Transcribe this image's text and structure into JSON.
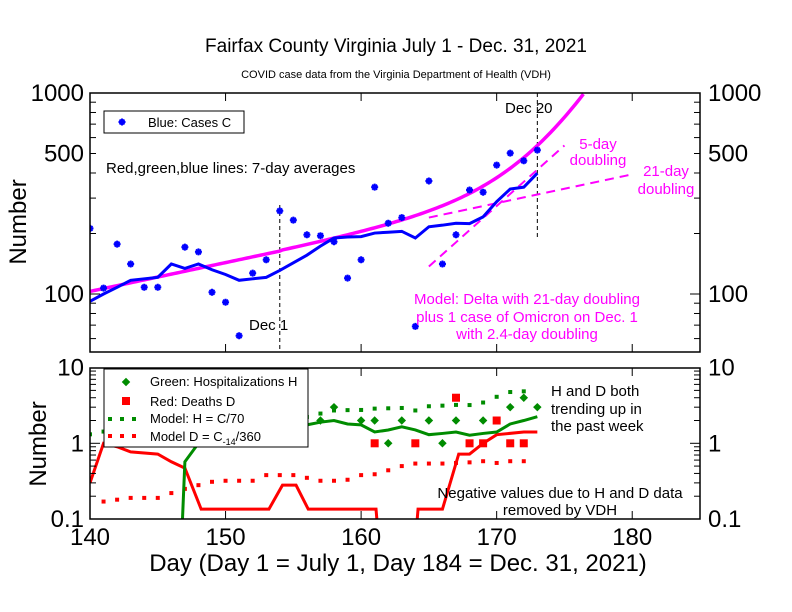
{
  "chart_data": [
    {
      "type": "scatter",
      "title": "Fairfax County Virginia July 1 - Dec. 31, 2021",
      "subtitle": "COVID case data from the Virginia Department of Health (VDH)",
      "ylabel": "Number",
      "yscale": "log",
      "xlim": [
        140,
        185
      ],
      "ylim": [
        50,
        1000
      ],
      "yticks": [
        {
          "v": 1000,
          "label": "1000"
        },
        {
          "v": 500,
          "label": "500"
        },
        {
          "v": 100,
          "label": "100"
        }
      ],
      "legend": {
        "placement": "top-left",
        "entries": [
          "Blue: Cases C"
        ]
      },
      "cases": {
        "name": "Blue: Cases C",
        "color": "#0000ff",
        "x": [
          140,
          141,
          142,
          143,
          144,
          145,
          147,
          148,
          149,
          150,
          151,
          152,
          153,
          154,
          155,
          156,
          157,
          158,
          159,
          160,
          161,
          162,
          163,
          164,
          165,
          166,
          167,
          168,
          169,
          170,
          171,
          172,
          173
        ],
        "y": [
          212,
          107,
          177,
          141,
          108,
          108,
          171,
          162,
          102,
          91,
          62,
          127,
          148,
          259,
          233,
          197,
          195,
          182,
          120,
          148,
          340,
          225,
          240,
          69,
          365,
          141,
          197,
          329,
          321,
          438,
          502,
          460,
          520
        ]
      },
      "cases_7day": {
        "color": "#0000ff",
        "x_start": 140,
        "y": [
          92,
          100,
          108,
          117,
          119,
          121,
          141,
          134,
          141,
          132,
          125,
          117,
          119,
          121,
          131,
          143,
          156,
          173,
          190,
          192,
          193,
          201,
          203,
          205,
          190,
          216,
          220,
          225,
          224,
          242,
          288,
          333,
          340,
          399
        ]
      },
      "model": {
        "color": "#ff00ff",
        "delta_initial": 103,
        "delta_start_day": 140,
        "delta_doubling_days": 21,
        "omicron_start_day": 154,
        "omicron_doubling_days": 2.4,
        "x_range": [
          140,
          176.4
        ]
      },
      "doubling_21": {
        "x_range": [
          165,
          180
        ],
        "y0": 240,
        "doubling_days": 21
      },
      "doubling_5": {
        "x_range": [
          165,
          175
        ],
        "y0": 137,
        "doubling_days": 5
      },
      "markers": [
        {
          "day": 154,
          "label": "Dec 1"
        },
        {
          "day": 173,
          "label": "Dec 20"
        }
      ],
      "annotations": {
        "averages": "Red,green,blue lines: 7-day averages",
        "five_day": [
          "5-day",
          "doubling"
        ],
        "twentyone_day": [
          "21-day",
          "doubling"
        ],
        "model": [
          "Model: Delta with 21-day doubling",
          "plus 1 case of Omicron on Dec. 1",
          "with 2.4-day doubling"
        ]
      }
    },
    {
      "type": "scatter",
      "xlabel": "Day (Day 1 = July 1, Day 184 = Dec. 31, 2021)",
      "ylabel": "Number",
      "yscale": "log",
      "xlim": [
        140,
        185
      ],
      "ylim": [
        0.1,
        10
      ],
      "xticks": [
        140,
        150,
        160,
        170,
        180
      ],
      "yticks": [
        {
          "v": 10,
          "label": "10"
        },
        {
          "v": 1,
          "label": "1"
        },
        {
          "v": 0.1,
          "label": "0.1"
        }
      ],
      "legend": {
        "placement": "top-left",
        "entries": [
          "Green: Hospitalizations H",
          "Red: Deaths D",
          "Model: H = C/70",
          "Model D = C"
        ],
        "sub": "-14",
        "tail": "/360"
      },
      "hospitalizations": {
        "color": "#008c00",
        "x": [
          157,
          158,
          160,
          161,
          162,
          163,
          165,
          166,
          167,
          169,
          171,
          172,
          173
        ],
        "y": [
          2,
          3,
          2,
          2,
          1,
          2,
          2,
          1,
          2,
          2,
          3,
          4,
          3
        ]
      },
      "deaths": {
        "color": "#ff0000",
        "x": [
          161,
          164,
          167,
          168,
          169,
          170,
          171,
          172
        ],
        "y": [
          1,
          1,
          4,
          1,
          1,
          2,
          1,
          1
        ]
      },
      "hosp_7day": {
        "color": "#008c00",
        "points": [
          [
            146.8,
            0.08
          ],
          [
            147,
            0.57
          ],
          [
            148,
            1.0
          ],
          [
            149,
            1.2
          ],
          [
            150,
            1.35
          ],
          [
            151,
            1.45
          ],
          [
            152,
            1.5
          ],
          [
            153,
            1.55
          ],
          [
            154,
            1.6
          ],
          [
            155,
            1.65
          ],
          [
            156,
            1.75
          ],
          [
            157,
            1.9
          ],
          [
            158,
            2.0
          ],
          [
            159,
            1.8
          ],
          [
            160,
            1.75
          ],
          [
            161,
            1.41
          ],
          [
            162,
            1.5
          ],
          [
            163,
            1.65
          ],
          [
            164,
            1.5
          ],
          [
            165,
            1.3
          ],
          [
            166,
            1.35
          ],
          [
            167,
            1.41
          ],
          [
            168,
            1.28
          ],
          [
            169,
            1.35
          ],
          [
            170,
            1.41
          ],
          [
            171,
            1.8
          ],
          [
            172,
            2.0
          ],
          [
            173,
            2.25
          ]
        ]
      },
      "deaths_7day": {
        "color": "#ff0000",
        "points": [
          [
            140,
            0.3
          ],
          [
            141,
            1.0
          ],
          [
            142,
            0.9
          ],
          [
            143,
            0.77
          ],
          [
            145,
            0.72
          ],
          [
            146,
            0.57
          ],
          [
            147,
            0.47
          ],
          [
            148.2,
            0.135
          ],
          [
            153.2,
            0.135
          ],
          [
            154.2,
            0.28
          ],
          [
            155.2,
            0.28
          ],
          [
            156.1,
            0.135
          ],
          [
            161.1,
            0.135
          ],
          [
            161.3,
            0.05
          ],
          [
            164,
            0.05
          ],
          [
            164.2,
            0.135
          ],
          [
            166,
            0.135
          ],
          [
            167.2,
            0.72
          ],
          [
            168,
            0.72
          ],
          [
            169,
            1.0
          ],
          [
            170,
            1.3
          ],
          [
            172,
            1.41
          ],
          [
            173,
            1.41
          ]
        ]
      },
      "model_h": {
        "color": "#008c00",
        "divisor": 70,
        "x_range": [
          140,
          172
        ]
      },
      "model_d": {
        "color": "#ff0000",
        "x_start": 141,
        "y": [
          0.17,
          0.18,
          0.19,
          0.19,
          0.19,
          0.22,
          0.25,
          0.28,
          0.31,
          0.32,
          0.32,
          0.32,
          0.38,
          0.38,
          0.38,
          0.35,
          0.32,
          0.32,
          0.33,
          0.38,
          0.39,
          0.44,
          0.5,
          0.54,
          0.54,
          0.54,
          0.55,
          0.56,
          0.58,
          0.55,
          0.58,
          0.58
        ]
      },
      "annotations": {
        "trend": [
          "H and D both",
          "trending up in",
          "the past week"
        ],
        "negative": [
          "Negative values due to H and D data",
          "removed by VDH"
        ]
      }
    }
  ]
}
